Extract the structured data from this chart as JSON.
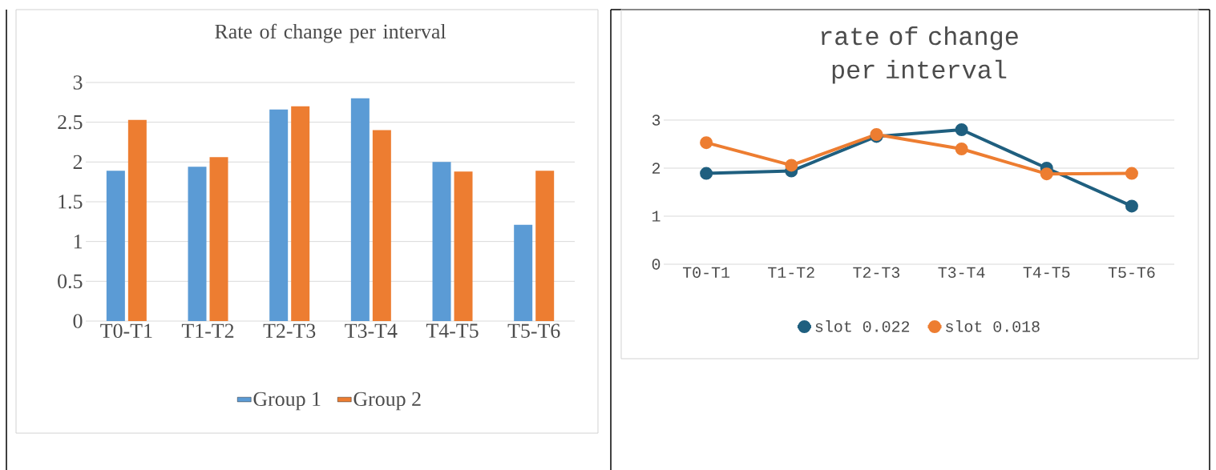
{
  "chart_data": [
    {
      "type": "bar",
      "title": "Rate of change per interval",
      "categories": [
        "T0-T1",
        "T1-T2",
        "T2-T3",
        "T3-T4",
        "T4-T5",
        "T5-T6"
      ],
      "series": [
        {
          "name": "Group 1",
          "color": "#5b9bd5",
          "values": [
            1.89,
            1.94,
            2.66,
            2.8,
            2.0,
            1.21
          ]
        },
        {
          "name": "Group 2",
          "color": "#ed7d31",
          "values": [
            2.53,
            2.06,
            2.7,
            2.4,
            1.88,
            1.89
          ]
        }
      ],
      "ylim": [
        0,
        3
      ],
      "yticks": [
        0,
        0.5,
        1,
        1.5,
        2,
        2.5,
        3
      ],
      "grid": "y",
      "legend": "bottom"
    },
    {
      "type": "line",
      "title": "rate of change per interval",
      "categories": [
        "T0-T1",
        "T1-T2",
        "T2-T3",
        "T3-T4",
        "T4-T5",
        "T5-T6"
      ],
      "series": [
        {
          "name": "slot 0.022",
          "color": "#1f5f7f",
          "values": [
            1.89,
            1.94,
            2.66,
            2.8,
            2.0,
            1.21
          ]
        },
        {
          "name": "slot 0.018",
          "color": "#ed7d31",
          "values": [
            2.53,
            2.06,
            2.7,
            2.4,
            1.88,
            1.89
          ]
        }
      ],
      "ylim": [
        0,
        3
      ],
      "yticks": [
        0,
        1,
        2,
        3
      ],
      "grid": "y",
      "legend": "bottom",
      "marker": "circle"
    }
  ]
}
